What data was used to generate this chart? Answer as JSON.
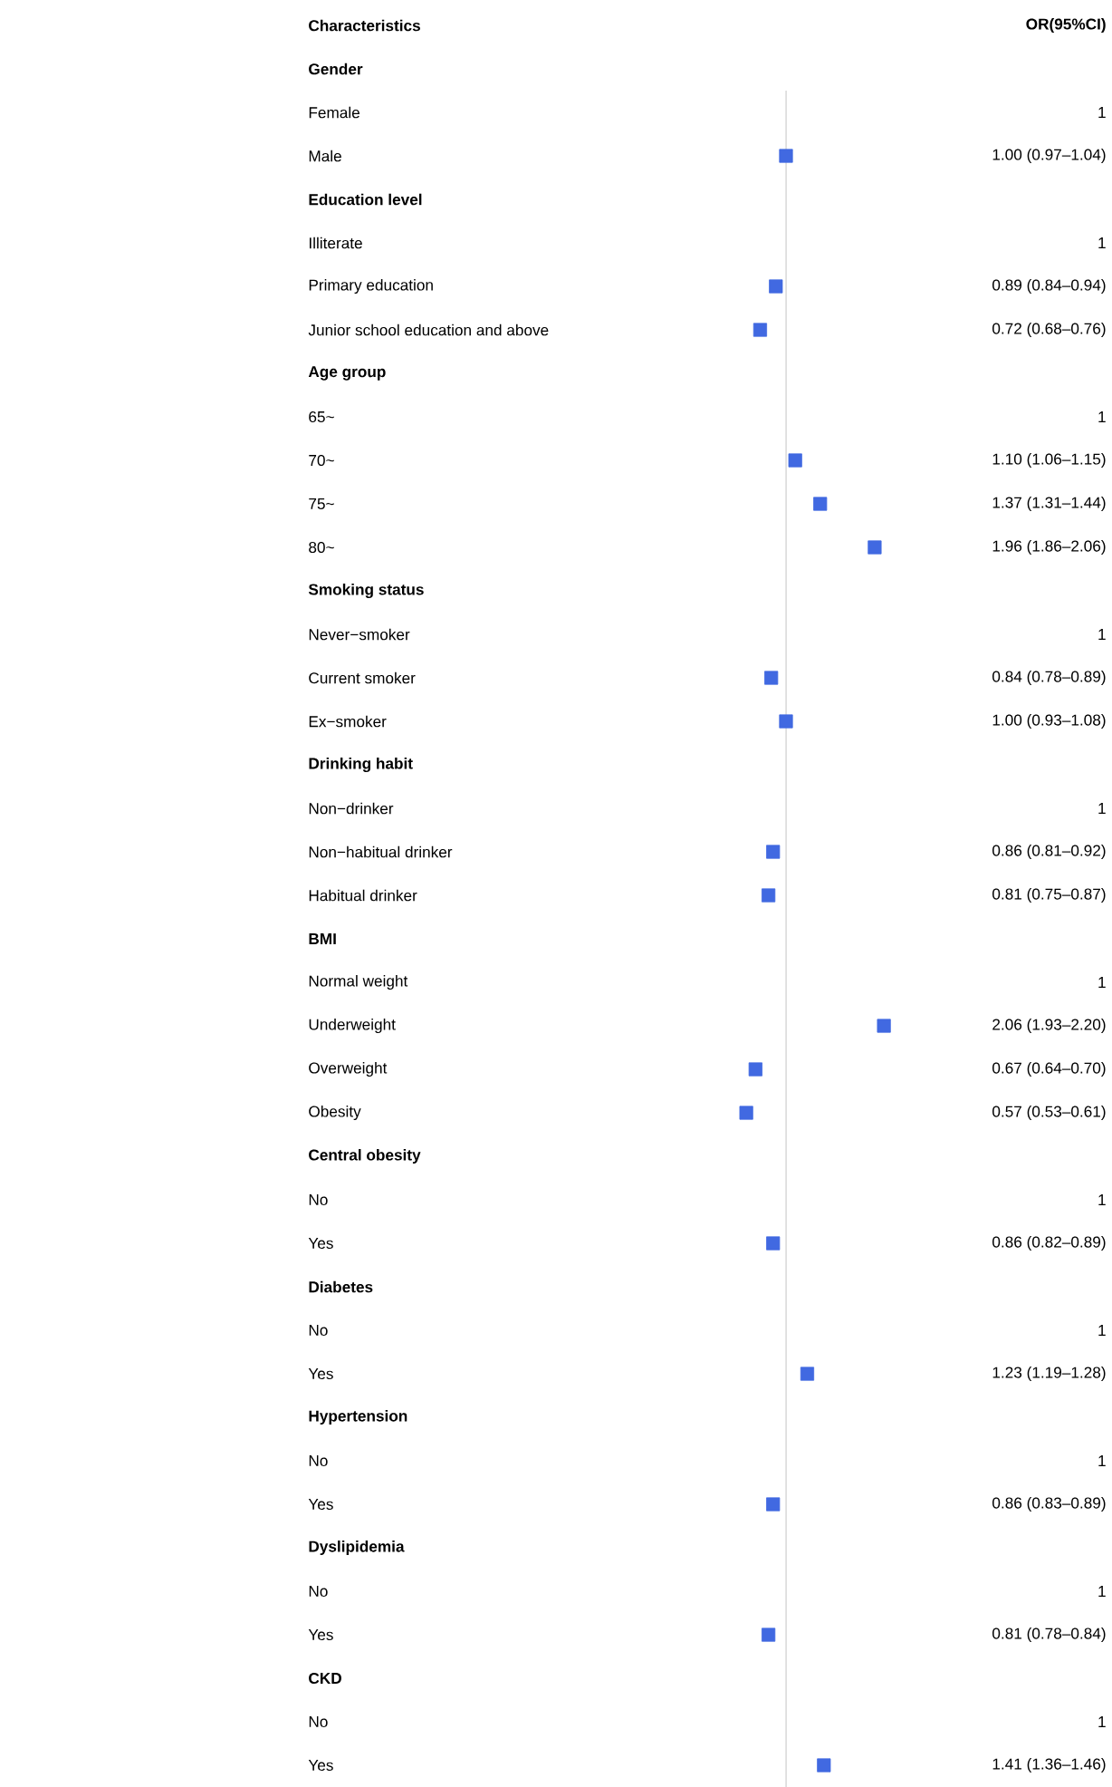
{
  "chart_data": {
    "type": "scatter",
    "orientation": "horizontal",
    "marker": "square",
    "color": "#4169e1",
    "annotations": [
      "Characteristics",
      "OR(95%CI)"
    ],
    "categories": [
      "Gender",
      "Female",
      "Male",
      "Education level",
      "Illiterate",
      "Primary education",
      "Junior school education and above",
      "Age group",
      "65~",
      "70~",
      "75~",
      "80~",
      "Smoking status",
      "Never−smoker",
      "Current smoker",
      "Ex−smoker",
      "Drinking habit",
      "Non−drinker",
      "Non−habitual drinker",
      "Habitual drinker",
      "BMI",
      "Normal weight",
      "Underweight",
      "Overweight",
      "Obesity",
      "Central obesity",
      "No",
      "Yes",
      "Diabetes",
      "No",
      "Yes",
      "Hypertension",
      "No",
      "Yes",
      "Dyslipidemia",
      "No",
      "Yes",
      "CKD",
      "No",
      "Yes"
    ],
    "values": [
      null,
      null,
      1.0,
      null,
      null,
      0.89,
      0.72,
      null,
      null,
      1.1,
      1.37,
      1.96,
      null,
      null,
      0.84,
      1.0,
      null,
      null,
      0.86,
      0.81,
      null,
      null,
      2.06,
      0.67,
      0.57,
      null,
      null,
      0.86,
      null,
      null,
      1.23,
      null,
      null,
      0.86,
      null,
      null,
      0.81,
      null,
      null,
      1.41
    ],
    "value_labels": [
      null,
      "1",
      "1.00 (0.97–1.04)",
      null,
      "1",
      "0.89 (0.84–0.94)",
      "0.72 (0.68–0.76)",
      null,
      "1",
      "1.10 (1.06–1.15)",
      "1.37 (1.31–1.44)",
      "1.96 (1.86–2.06)",
      null,
      "1",
      "0.84 (0.78–0.89)",
      "1.00 (0.93–1.08)",
      null,
      "1",
      "0.86 (0.81–0.92)",
      "0.81 (0.75–0.87)",
      null,
      "1",
      "2.06 (1.93–2.20)",
      "0.67 (0.64–0.70)",
      "0.57 (0.53–0.61)",
      null,
      "1",
      "0.86 (0.82–0.89)",
      null,
      "1",
      "1.23 (1.19–1.28)",
      null,
      "1",
      "0.86 (0.83–0.89)",
      null,
      "1",
      "0.81 (0.78–0.84)",
      null,
      "1",
      "1.41 (1.36–1.46)"
    ],
    "ref_lines": [
      {
        "axis": "x",
        "value": 1,
        "color": "#c8c8c8"
      }
    ]
  }
}
